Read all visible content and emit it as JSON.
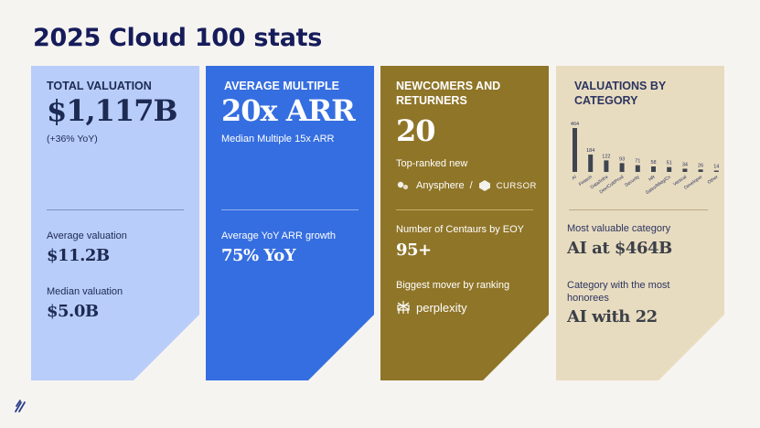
{
  "page": {
    "title": "2025 Cloud 100 stats"
  },
  "cards": {
    "valuation": {
      "label": "TOTAL VALUATION",
      "value": "$1,117B",
      "change": "(+36% YoY)",
      "avg_label": "Average valuation",
      "avg_value": "$11.2B",
      "median_label": "Median valuation",
      "median_value": "$5.0B",
      "bg": "#b8cdfa",
      "text_color": "#1d2a52"
    },
    "multiple": {
      "label": "AVERAGE MULTIPLE",
      "value": "20x ARR",
      "median": "Median Multiple 15x ARR",
      "growth_label": "Average YoY ARR growth",
      "growth_value": "75% YoY",
      "bg": "#356ee0",
      "text_color": "#ffffff"
    },
    "newcomers": {
      "label_line1": "NEWCOMERS AND",
      "label_line2": "RETURNERS",
      "value": "20",
      "top_ranked_label": "Top-ranked new",
      "anysphere": "Anysphere",
      "slash": "/",
      "cursor": "CURSOR",
      "centaurs_label": "Number of Centaurs by EOY",
      "centaurs_value": "95+",
      "mover_label": "Biggest mover by ranking",
      "perplexity": "perplexity",
      "bg": "#8f7528",
      "text_color": "#ffffff"
    },
    "category": {
      "label_line1": "VALUATIONS BY",
      "label_line2": "CATEGORY",
      "most_valuable_label": "Most valuable category",
      "most_valuable_value": "AI at $464B",
      "most_honorees_label_line1": "Category with the most",
      "most_honorees_label_line2": "honorees",
      "most_honorees_value": "AI with 22",
      "bg": "#e8dcc0",
      "text_color": "#2c3460",
      "bar_color": "#3f4550"
    }
  },
  "chart_data": {
    "type": "bar",
    "categories": [
      "AI",
      "Fintech",
      "Data/Infra",
      "Dev/Coll/Prod",
      "Security",
      "HR",
      "Sales/Mktg/Cx",
      "Vertical",
      "Developer",
      "Other"
    ],
    "values": [
      464,
      184,
      122,
      93,
      71,
      58,
      51,
      34,
      26,
      14
    ],
    "title": "",
    "xlabel": "",
    "ylabel": ""
  }
}
